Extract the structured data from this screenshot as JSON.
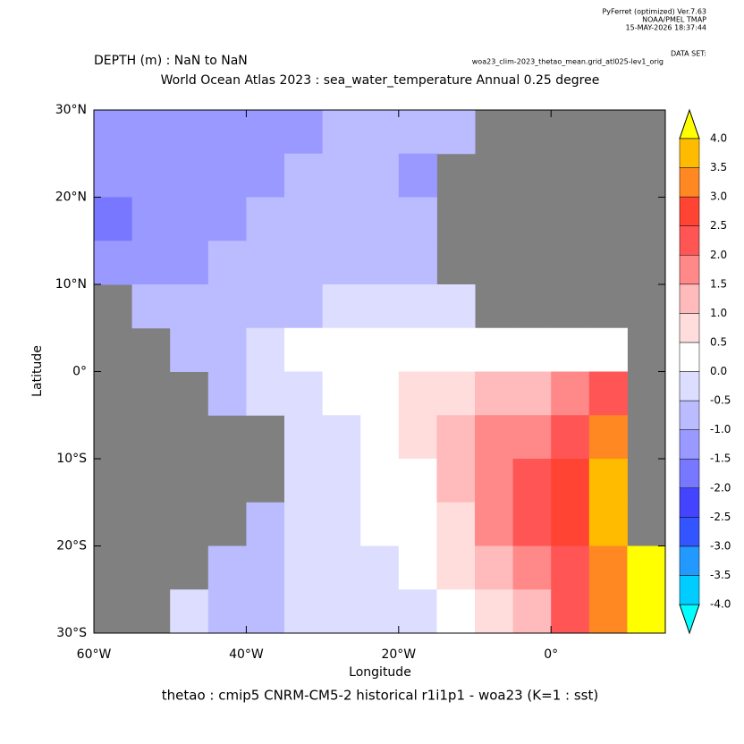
{
  "header": {
    "software": "PyFerret (optimized) Ver.7.63",
    "org": "NOAA/PMEL TMAP",
    "timestamp": "15-MAY-2026 18:37:44",
    "dataset_label": "DATA SET:",
    "dataset": "woa23_clim-2023_thetao_mean.grid_atl025-lev1_orig"
  },
  "chart_data": {
    "type": "heatmap",
    "title": "World Ocean Atlas 2023 : sea_water_temperature Annual  0.25 degree",
    "subtitle": "DEPTH (m) : NaN to NaN",
    "x_label": "Longitude",
    "y_label": "Latitude",
    "caption": "thetao : cmip5 CNRM-CM5-2 historical r1i1p1 - woa23  (K=1 : sst)",
    "xlim": [
      -60,
      15
    ],
    "ylim": [
      -30,
      30
    ],
    "xticks": [
      {
        "value": -60,
        "label": "60°W"
      },
      {
        "value": -40,
        "label": "40°W"
      },
      {
        "value": -20,
        "label": "20°W"
      },
      {
        "value": 0,
        "label": "0°"
      }
    ],
    "yticks": [
      {
        "value": 30,
        "label": "30°N"
      },
      {
        "value": 20,
        "label": "20°N"
      },
      {
        "value": 10,
        "label": "10°N"
      },
      {
        "value": 0,
        "label": "0°"
      },
      {
        "value": -10,
        "label": "10°S"
      },
      {
        "value": -20,
        "label": "20°S"
      },
      {
        "value": -30,
        "label": "30°S"
      }
    ],
    "x": [
      -57.5,
      -52.5,
      -47.5,
      -42.5,
      -37.5,
      -32.5,
      -27.5,
      -22.5,
      -17.5,
      -12.5,
      -7.5,
      -2.5,
      2.5,
      7.5,
      12.5
    ],
    "y": [
      27.5,
      22.5,
      17.5,
      12.5,
      7.5,
      2.5,
      -2.5,
      -7.5,
      -12.5,
      -17.5,
      -22.5,
      -27.5
    ],
    "values": [
      [
        -1.5,
        -1.5,
        -1.5,
        -1.5,
        -1.2,
        -1.2,
        -1.0,
        -1.0,
        -1.0,
        -1.0,
        null,
        null,
        null,
        null,
        null
      ],
      [
        -1.5,
        -1.5,
        -1.5,
        -1.2,
        -1.2,
        -1.0,
        -1.0,
        -1.0,
        -1.2,
        null,
        null,
        null,
        null,
        null,
        null
      ],
      [
        -2.0,
        -1.5,
        -1.5,
        -1.2,
        -1.0,
        -1.0,
        -0.8,
        -0.8,
        -1.0,
        null,
        null,
        null,
        null,
        null,
        null
      ],
      [
        -1.2,
        -1.2,
        -1.2,
        -1.0,
        -0.8,
        -0.7,
        -0.7,
        -0.7,
        -0.8,
        null,
        null,
        null,
        null,
        null,
        null
      ],
      [
        null,
        -1.0,
        -1.0,
        -1.0,
        -0.7,
        -0.6,
        -0.5,
        -0.5,
        -0.5,
        -0.5,
        null,
        null,
        null,
        null,
        null
      ],
      [
        null,
        null,
        -0.8,
        -0.7,
        -0.3,
        0,
        0,
        0,
        0.2,
        0.3,
        0.3,
        0.3,
        0.3,
        0.3,
        null
      ],
      [
        null,
        null,
        null,
        -0.7,
        -0.5,
        -0.2,
        0,
        0.2,
        0.5,
        0.8,
        1.0,
        1.2,
        1.5,
        2.0,
        null
      ],
      [
        null,
        null,
        null,
        null,
        null,
        -0.4,
        -0.2,
        0,
        0.5,
        1.0,
        1.5,
        1.8,
        2.2,
        3.0,
        null
      ],
      [
        null,
        null,
        null,
        null,
        null,
        -0.5,
        -0.2,
        0,
        0.3,
        1.0,
        1.5,
        2.0,
        2.5,
        3.5,
        null
      ],
      [
        null,
        null,
        null,
        null,
        -0.8,
        -0.5,
        -0.2,
        0,
        0.3,
        0.8,
        1.5,
        2.2,
        2.5,
        3.5,
        null
      ],
      [
        null,
        null,
        null,
        -0.7,
        -0.7,
        -0.5,
        -0.3,
        -0.2,
        0,
        0.5,
        1.0,
        1.5,
        2.0,
        3.0,
        4.0
      ],
      [
        null,
        null,
        -0.5,
        -0.8,
        -0.7,
        -0.5,
        -0.4,
        -0.3,
        -0.1,
        0.3,
        0.7,
        1.2,
        2.0,
        3.0,
        4.0
      ]
    ],
    "land_color": "#808080",
    "levels": [
      {
        "value": -4,
        "label": "-4.0"
      },
      -3.5,
      {
        "value": -3,
        "label": "-3.0"
      },
      -2.5,
      {
        "value": -2,
        "label": "-2.0"
      },
      -1.5,
      {
        "value": -1,
        "label": "-1.0"
      },
      -0.5,
      {
        "value": 0,
        "label": "0.0"
      },
      0.5,
      {
        "value": 1,
        "label": "1.0"
      },
      1.5,
      {
        "value": 2,
        "label": "2.0"
      },
      2.5,
      {
        "value": 3,
        "label": "3.0"
      },
      3.5,
      {
        "value": 4,
        "label": "4.0"
      }
    ],
    "colors": [
      "#00ffff",
      "#00ccff",
      "#2299ff",
      "#3355ff",
      "#4444ff",
      "#7777ff",
      "#9999ff",
      "#bbbbff",
      "#ddddff",
      "#ffffff",
      "#ffdddd",
      "#ffbbbb",
      "#ff8888",
      "#ff5555",
      "#ff4433",
      "#ff8822",
      "#ffbb00",
      "#ffff00"
    ]
  }
}
